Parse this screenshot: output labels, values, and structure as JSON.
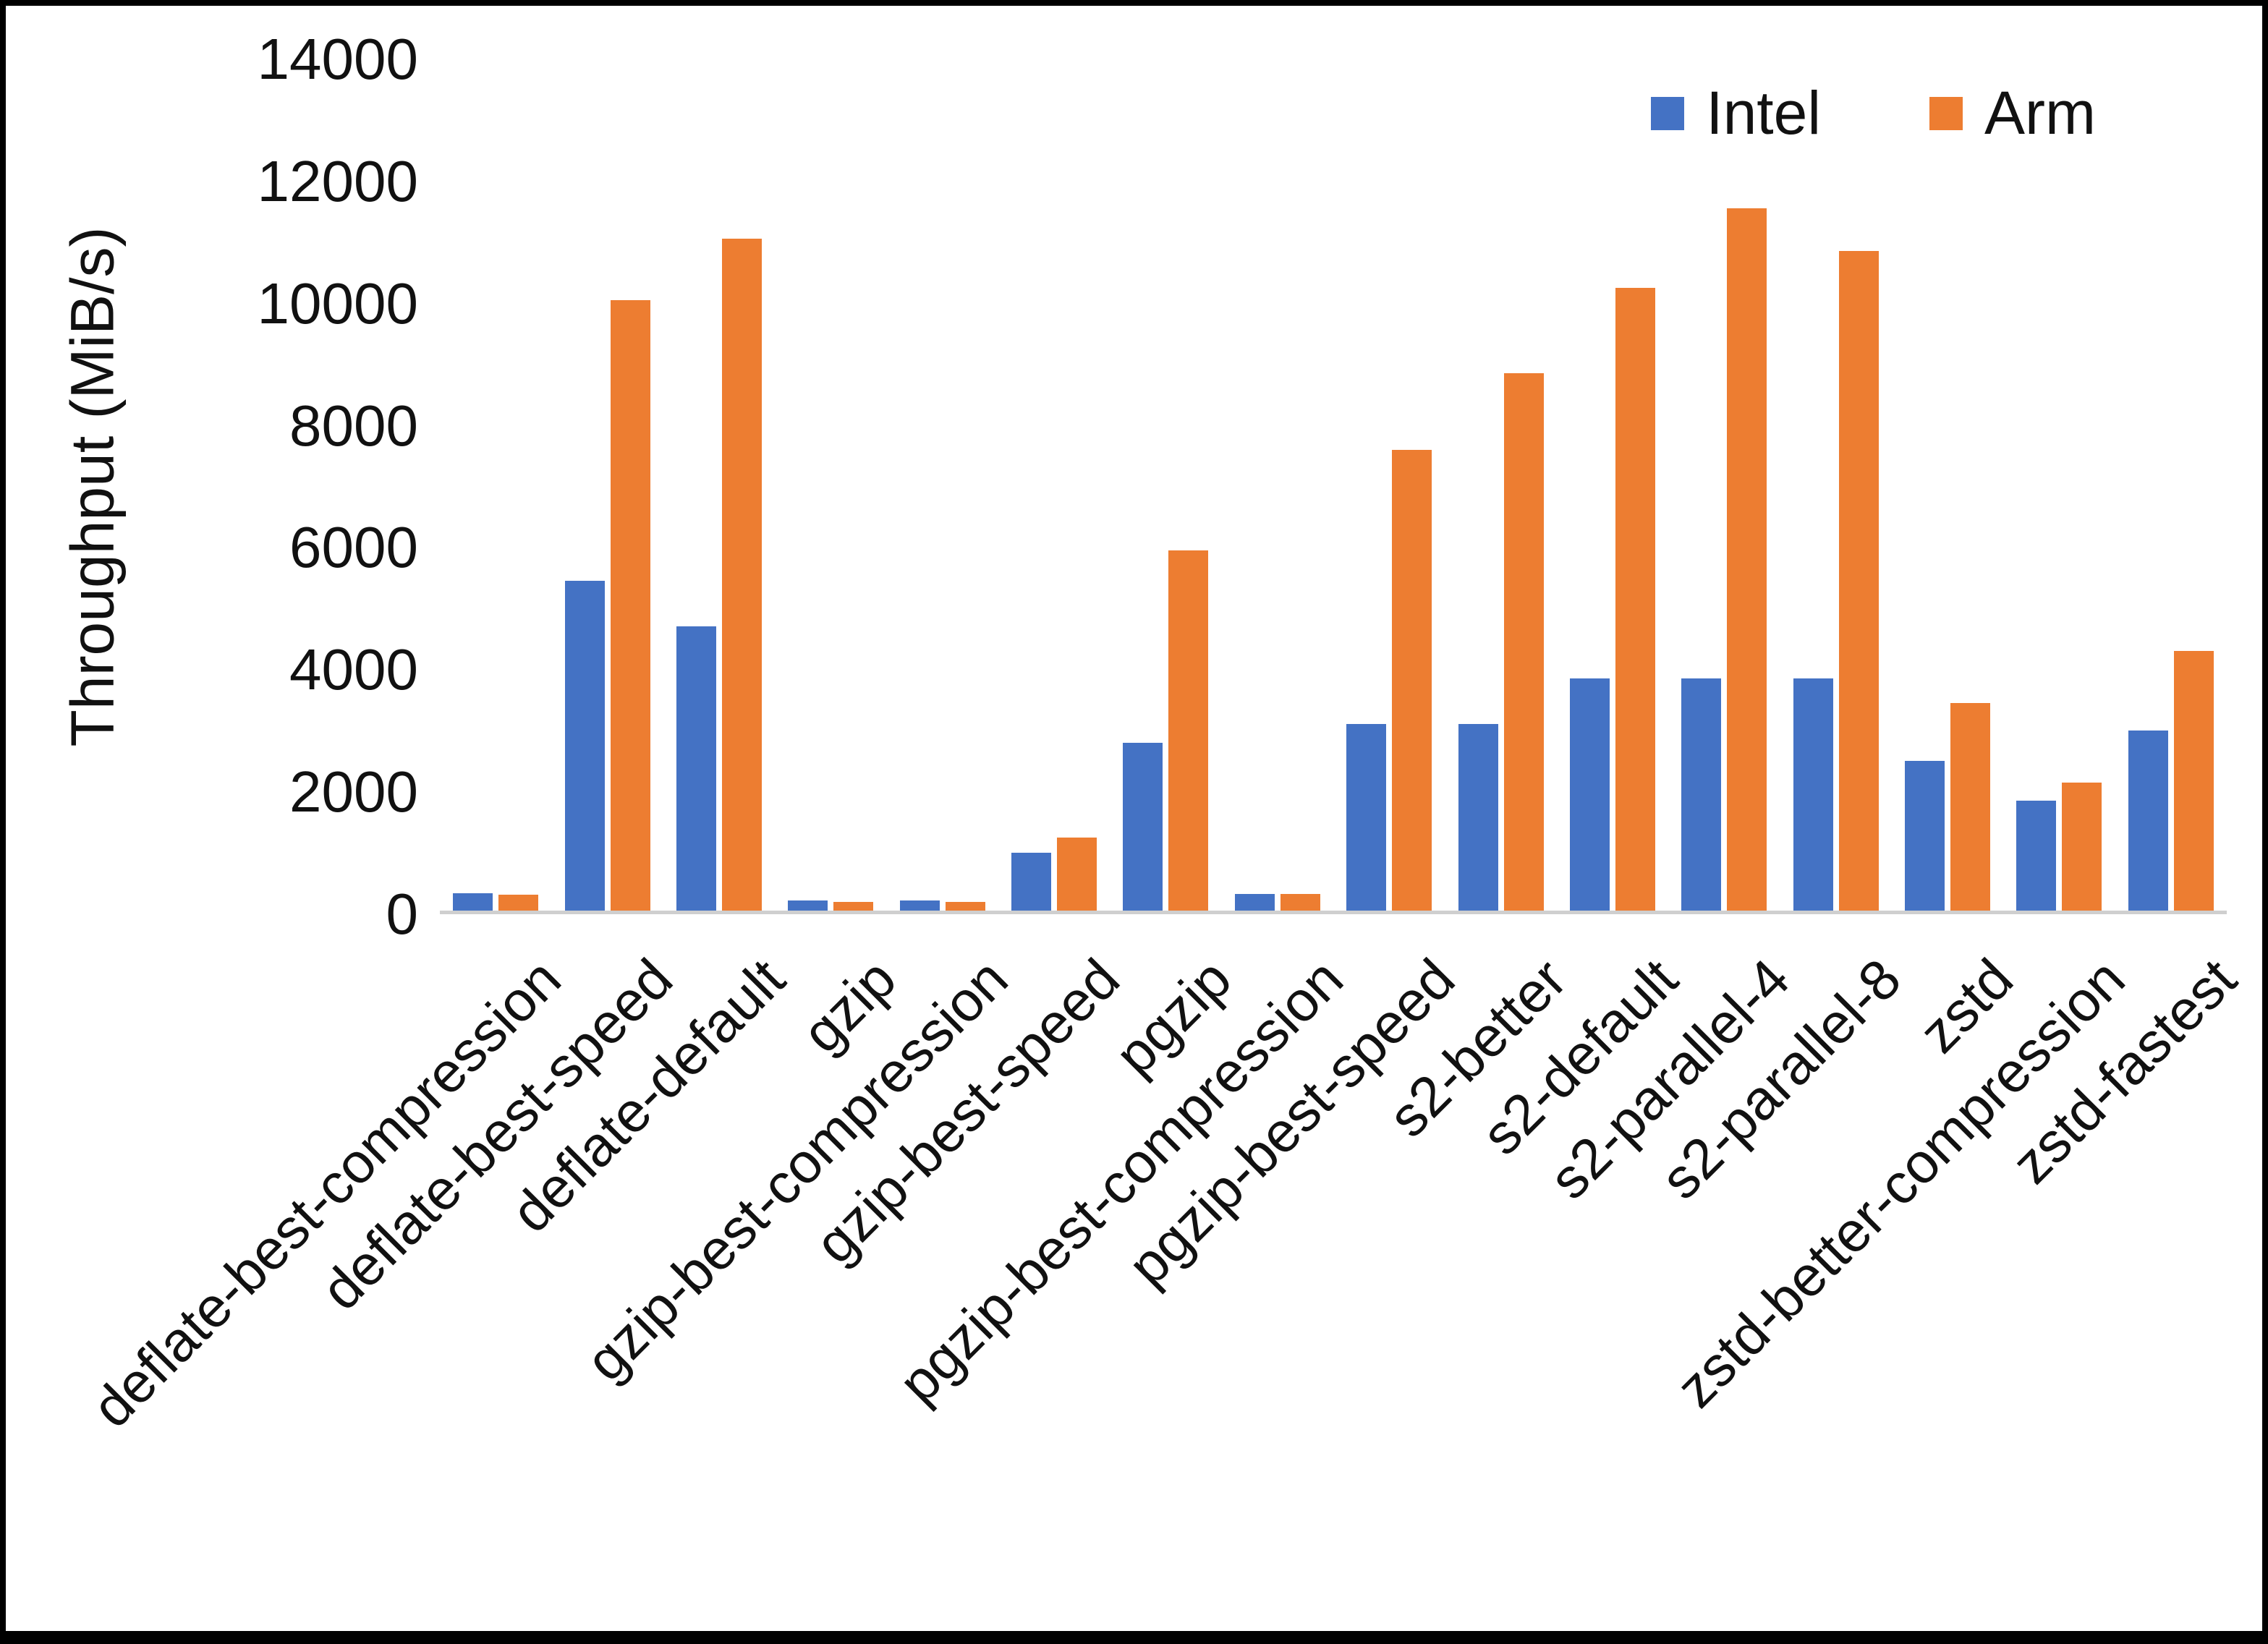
{
  "chart_data": {
    "type": "bar",
    "title": "",
    "xlabel": "",
    "ylabel": "Throughput (MiB/s)",
    "ylim": [
      0,
      14000
    ],
    "ytick_step": 2000,
    "grid": false,
    "legend_position": "top-right",
    "categories": [
      "deflate-best-compression",
      "deflate-best-speed",
      "deflate-default",
      "gzip",
      "gzip-best-compression",
      "gzip-best-speed",
      "pgzip",
      "pgzip-best-compression",
      "pgzip-best-speed",
      "s2-better",
      "s2-default",
      "s2-parallel-4",
      "s2-parallel-8",
      "zstd",
      "zstd-better-compression",
      "zstd-fastest"
    ],
    "series": [
      {
        "name": "Intel",
        "color": "#4472C4",
        "values": [
          280,
          5400,
          4650,
          160,
          160,
          950,
          2750,
          270,
          3050,
          3050,
          3800,
          3800,
          3800,
          2450,
          1800,
          2950
        ]
      },
      {
        "name": "Arm",
        "color": "#ED7D31",
        "values": [
          260,
          10000,
          11000,
          140,
          140,
          1200,
          5900,
          270,
          7550,
          8800,
          10200,
          11500,
          10800,
          3400,
          2100,
          4250
        ]
      }
    ]
  },
  "colors": {
    "background": "#ffffff",
    "frame_border": "#000000",
    "axis_line": "#cfcfcf",
    "text": "#111111"
  }
}
